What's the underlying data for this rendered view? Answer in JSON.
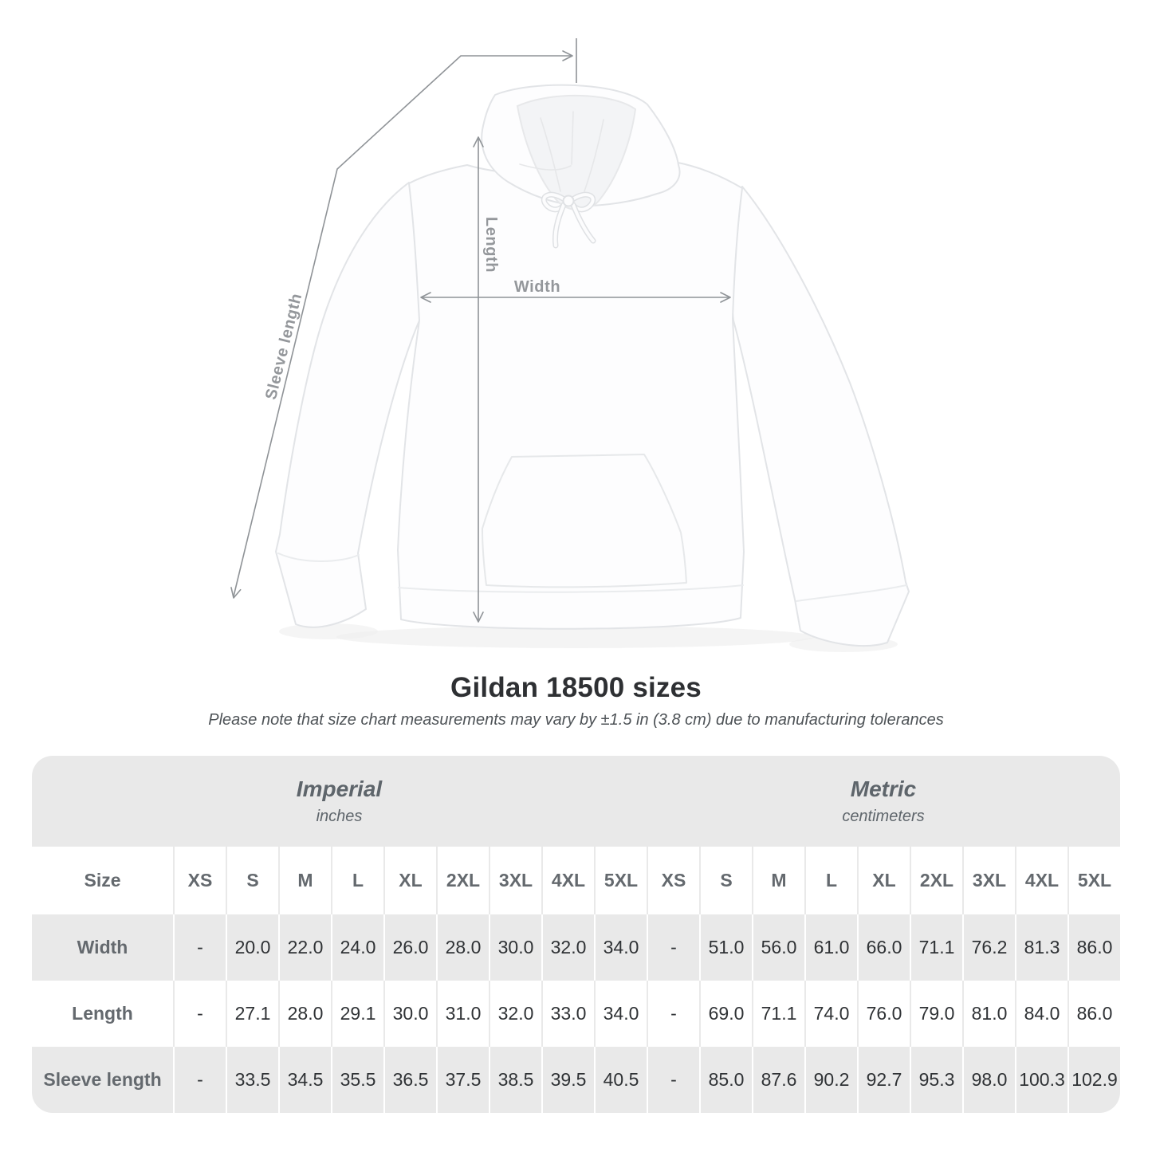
{
  "figure": {
    "measure_labels": {
      "width": "Width",
      "length": "Length",
      "sleeve": "Sleeve length"
    }
  },
  "chart_data": {
    "type": "table",
    "title": "Gildan 18500 sizes",
    "subtitle": "Please note that size chart measurements may vary by ±1.5 in (3.8 cm) due to manufacturing tolerances",
    "unit_groups": [
      {
        "label": "Imperial",
        "sublabel": "inches"
      },
      {
        "label": "Metric",
        "sublabel": "centimeters"
      }
    ],
    "size_header": "Size",
    "sizes": [
      "XS",
      "S",
      "M",
      "L",
      "XL",
      "2XL",
      "3XL",
      "4XL",
      "5XL"
    ],
    "rows": [
      {
        "label": "Width",
        "imperial": [
          "-",
          "20.0",
          "22.0",
          "24.0",
          "26.0",
          "28.0",
          "30.0",
          "32.0",
          "34.0"
        ],
        "metric": [
          "-",
          "51.0",
          "56.0",
          "61.0",
          "66.0",
          "71.1",
          "76.2",
          "81.3",
          "86.0"
        ]
      },
      {
        "label": "Length",
        "imperial": [
          "-",
          "27.1",
          "28.0",
          "29.1",
          "30.0",
          "31.0",
          "32.0",
          "33.0",
          "34.0"
        ],
        "metric": [
          "-",
          "69.0",
          "71.1",
          "74.0",
          "76.0",
          "79.0",
          "81.0",
          "84.0",
          "86.0"
        ]
      },
      {
        "label": "Sleeve length",
        "imperial": [
          "-",
          "33.5",
          "34.5",
          "35.5",
          "36.5",
          "37.5",
          "38.5",
          "39.5",
          "40.5"
        ],
        "metric": [
          "-",
          "85.0",
          "87.6",
          "90.2",
          "92.7",
          "95.3",
          "98.0",
          "100.3",
          "102.9"
        ]
      }
    ]
  },
  "colors": {
    "table_stripe": "#e9e9e9",
    "header_text": "#64696e",
    "data_text": "#2f3235",
    "annotation_line": "#8f9397",
    "annotation_label": "#94979b"
  }
}
